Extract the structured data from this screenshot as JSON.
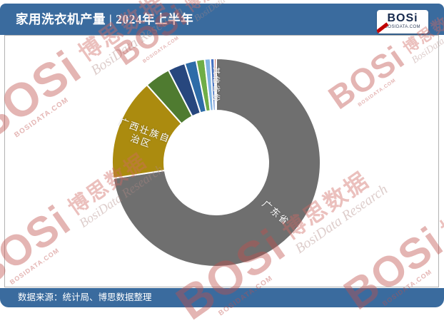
{
  "header": {
    "title": "家用洗衣机产量 | 2024年上半年",
    "logo": {
      "text": "BOSi",
      "subtext": "BOSIDATA.COM"
    }
  },
  "footer": {
    "source": "数据来源：统计局、博思数据整理"
  },
  "watermark": {
    "brand": "BOSi",
    "domain": "BOSIDATA.COM",
    "brand_cn": "博思数据",
    "brand_en": "BosiData Research"
  },
  "colors": {
    "header_bg": "#3A6B9E",
    "footer_bg": "#3A6B9E",
    "panel_border": "#B3B3B3",
    "watermark_red": "#C0504D"
  },
  "chart_data": {
    "type": "pie",
    "donut": true,
    "inner_radius_pct": 50,
    "start_angle_deg": 0,
    "direction": "clockwise",
    "title": "家用洗衣机产量 | 2024年上半年",
    "values_are_estimates_from_arc_angles": true,
    "unit": "share_pct",
    "slices": [
      {
        "label": "广东省",
        "label_display": "广东省",
        "share_pct": 72.6,
        "color": "#6F6F6F",
        "label_font_px": 13
      },
      {
        "label": "广西壮族自治区",
        "label_display": "广西壮族自\n治区",
        "share_pct": 15.8,
        "color": "#AB8B0F",
        "label_font_px": 13
      },
      {
        "label": "",
        "share_pct": 4.0,
        "color": "#4F7B30"
      },
      {
        "label": "",
        "share_pct": 2.7,
        "color": "#27477E"
      },
      {
        "label": "",
        "share_pct": 1.8,
        "color": "#2E6CA8"
      },
      {
        "label": "",
        "share_pct": 1.3,
        "color": "#6FAD47"
      },
      {
        "label": "",
        "share_pct": 0.9,
        "color": "#7FB3E3"
      },
      {
        "label": "",
        "share_pct": 0.6,
        "color": "#4472C4"
      },
      {
        "label": "其他省份",
        "label_display": "其他省份",
        "share_pct": 0.3,
        "color": "#A93834",
        "label_font_px": 10.5
      }
    ]
  }
}
